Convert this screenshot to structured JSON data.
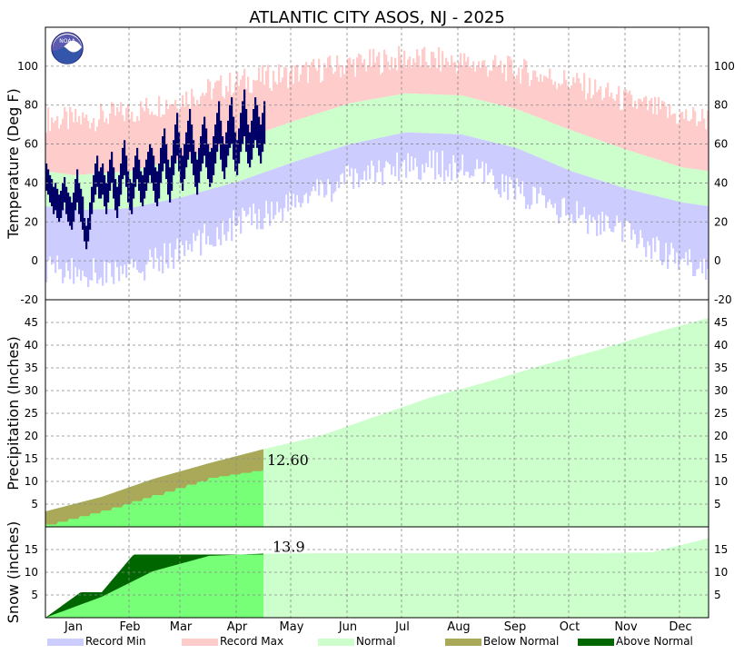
{
  "chart_data": {
    "type": "area",
    "title": "ATLANTIC CITY  ASOS, NJ - 2025",
    "logo_text": "NOAA",
    "months": [
      "Jan",
      "Feb",
      "Mar",
      "Apr",
      "May",
      "Jun",
      "Jul",
      "Aug",
      "Sep",
      "Oct",
      "Nov",
      "Dec"
    ],
    "colors": {
      "record_min": "#ccccff",
      "record_max": "#ffcccc",
      "normal": "#ccffcc",
      "below_normal": "#aaa95a",
      "above_normal": "#006600",
      "observed_temp": "#000066",
      "observed_precip": "#77ff77"
    },
    "legend": [
      {
        "key": "record_min",
        "label": "Record Min"
      },
      {
        "key": "record_max",
        "label": "Record Max"
      },
      {
        "key": "normal",
        "label": "Normal"
      },
      {
        "key": "below_normal",
        "label": "Below Normal"
      },
      {
        "key": "above_normal",
        "label": "Above Normal"
      }
    ],
    "temperature": {
      "ylabel": "Temperature (Deg F)",
      "ylim": [
        -20,
        120
      ],
      "ticks": [
        "-20",
        "0",
        "20",
        "40",
        "60",
        "80",
        "100"
      ],
      "grid": true,
      "normal_high_monthly": [
        44,
        46,
        53,
        62,
        72,
        81,
        86,
        85,
        78,
        67,
        57,
        48
      ],
      "normal_low_monthly": [
        26,
        27,
        33,
        41,
        51,
        60,
        66,
        65,
        58,
        46,
        37,
        30
      ],
      "record_high_monthly": [
        72,
        76,
        84,
        92,
        96,
        101,
        104,
        102,
        98,
        92,
        82,
        74
      ],
      "record_low_monthly": [
        -6,
        -6,
        6,
        20,
        30,
        42,
        50,
        48,
        36,
        24,
        14,
        0
      ],
      "observed_high_daily": [
        50,
        47,
        44,
        42,
        38,
        40,
        37,
        34,
        36,
        40,
        43,
        38,
        35,
        33,
        30,
        35,
        42,
        47,
        40,
        37,
        33,
        22,
        18,
        22,
        30,
        38,
        44,
        50,
        54,
        46,
        48,
        50,
        44,
        40,
        46,
        52,
        56,
        48,
        42,
        38,
        44,
        50,
        58,
        62,
        54,
        46,
        42,
        40,
        48,
        54,
        58,
        52,
        46,
        44,
        48,
        52,
        56,
        60,
        58,
        54,
        48,
        46,
        50,
        58,
        64,
        68,
        60,
        52,
        48,
        54,
        62,
        70,
        76,
        66,
        58,
        54,
        60,
        66,
        72,
        78,
        70,
        62,
        56,
        52,
        58,
        64,
        70,
        74,
        68,
        60,
        56,
        58,
        64,
        70,
        76,
        82,
        72,
        64,
        60,
        66,
        72,
        80,
        84,
        74,
        66,
        62,
        68,
        76,
        82,
        88,
        78,
        70,
        66,
        72,
        78,
        84,
        80,
        74,
        70,
        76,
        82
      ],
      "observed_low_daily": [
        36,
        34,
        30,
        28,
        24,
        26,
        22,
        20,
        22,
        26,
        30,
        24,
        20,
        18,
        16,
        20,
        26,
        30,
        24,
        20,
        16,
        10,
        6,
        10,
        16,
        24,
        30,
        34,
        38,
        32,
        32,
        34,
        28,
        24,
        30,
        36,
        40,
        32,
        26,
        22,
        28,
        34,
        42,
        44,
        38,
        30,
        26,
        24,
        32,
        38,
        42,
        36,
        30,
        28,
        32,
        36,
        40,
        44,
        40,
        36,
        30,
        28,
        32,
        40,
        46,
        50,
        42,
        34,
        30,
        36,
        44,
        50,
        54,
        46,
        40,
        36,
        42,
        48,
        52,
        56,
        50,
        44,
        38,
        34,
        40,
        46,
        50,
        54,
        48,
        42,
        38,
        40,
        44,
        50,
        56,
        60,
        52,
        46,
        42,
        48,
        54,
        58,
        60,
        52,
        46,
        44,
        50,
        56,
        60,
        64,
        56,
        50,
        48,
        52,
        58,
        62,
        58,
        54,
        50,
        56,
        60
      ]
    },
    "precipitation": {
      "ylabel": "Precipitation (Inches)",
      "ylim": [
        0,
        50
      ],
      "ticks": [
        "5",
        "10",
        "15",
        "20",
        "25",
        "30",
        "35",
        "40",
        "45"
      ],
      "grid": true,
      "normal_cumulative_month_end": [
        3.4,
        6.6,
        10.5,
        14.0,
        17.1,
        20.0,
        24.2,
        28.5,
        31.9,
        35.5,
        38.9,
        42.6,
        46.0
      ],
      "observed_total": "12.60",
      "observed_cumulative_month_end": [
        0.5,
        3.6,
        7.0,
        10.8,
        12.6
      ]
    },
    "snow": {
      "ylabel": "Snow (inches)",
      "ylim": [
        0,
        20
      ],
      "ticks": [
        "5",
        "10",
        "15"
      ],
      "grid": true,
      "normal_cumulative_month_end": [
        0,
        4.6,
        10.2,
        13.6,
        14.1,
        14.2,
        14.2,
        14.2,
        14.2,
        14.2,
        14.2,
        14.4,
        17.5
      ],
      "observed_total": "13.9",
      "observed_cumulative_month_end": [
        0,
        5.6,
        13.9,
        13.9,
        13.9
      ]
    },
    "observed_through": "Apr 30"
  }
}
